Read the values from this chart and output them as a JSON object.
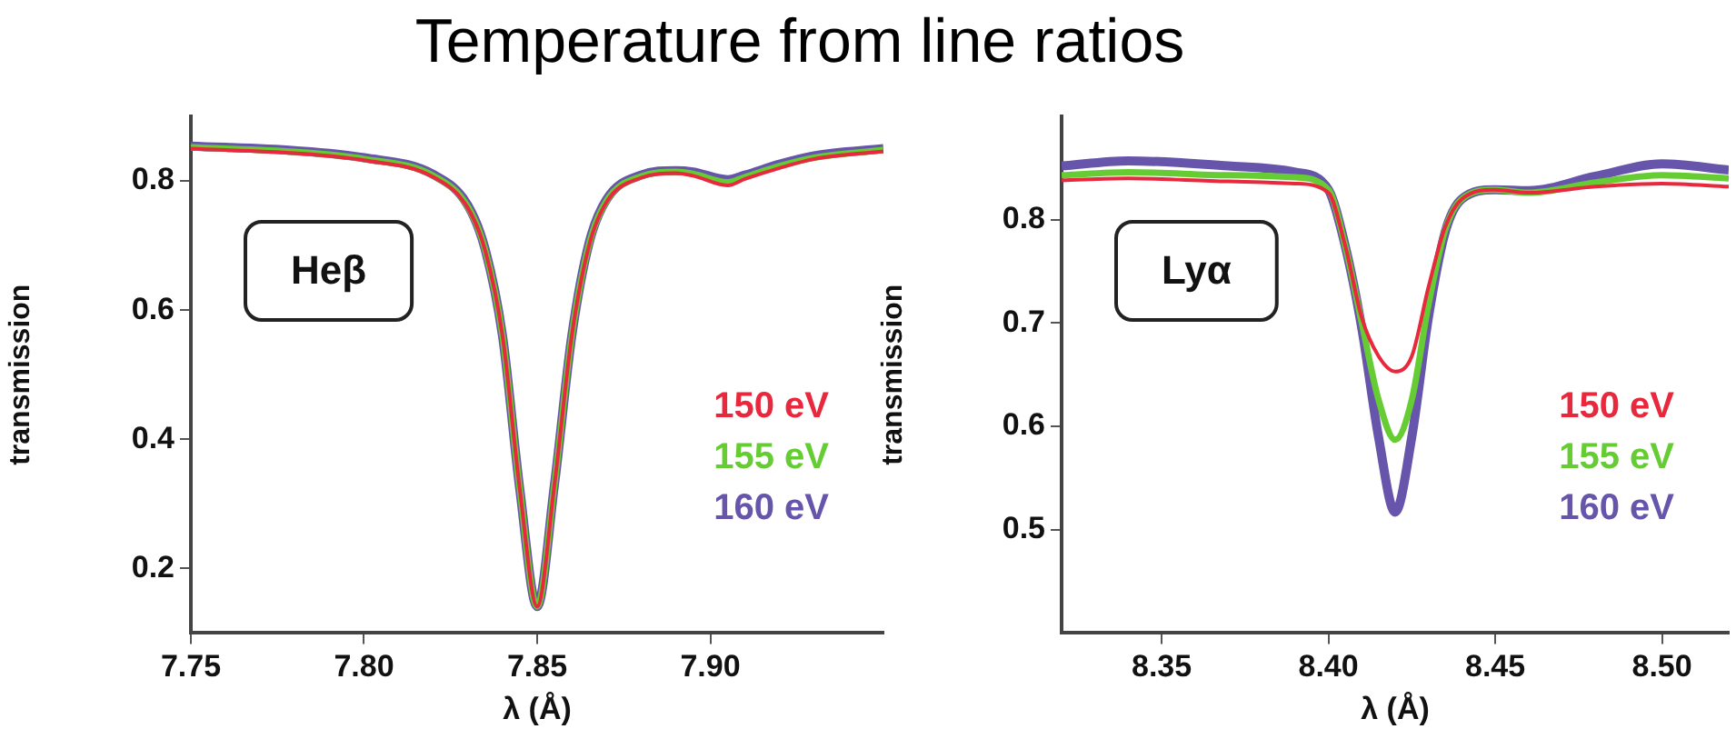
{
  "chart_data": [
    {
      "type": "line",
      "title": "Temperature from line ratios",
      "xlabel": "λ (Å)",
      "ylabel": "transmission",
      "annotations": [
        "Heβ"
      ],
      "x": [
        7.75,
        7.78,
        7.8,
        7.82,
        7.83,
        7.835,
        7.84,
        7.845,
        7.85,
        7.855,
        7.86,
        7.865,
        7.87,
        7.88,
        7.89,
        7.895,
        7.905,
        7.91,
        7.92,
        7.93,
        7.95
      ],
      "series": [
        {
          "name": "150 eV",
          "color": "#e8283c",
          "values": [
            0.85,
            0.843,
            0.832,
            0.806,
            0.758,
            0.692,
            0.56,
            0.322,
            0.141,
            0.33,
            0.56,
            0.7,
            0.767,
            0.805,
            0.812,
            0.808,
            0.793,
            0.803,
            0.82,
            0.834,
            0.846
          ]
        },
        {
          "name": "155 eV",
          "color": "#66cc33",
          "values": [
            0.852,
            0.845,
            0.834,
            0.808,
            0.76,
            0.693,
            0.56,
            0.322,
            0.141,
            0.33,
            0.56,
            0.702,
            0.769,
            0.807,
            0.814,
            0.811,
            0.798,
            0.806,
            0.823,
            0.836,
            0.848
          ]
        },
        {
          "name": "160 eV",
          "color": "#6655aa",
          "values": [
            0.854,
            0.847,
            0.836,
            0.81,
            0.762,
            0.694,
            0.56,
            0.322,
            0.141,
            0.33,
            0.56,
            0.704,
            0.771,
            0.809,
            0.816,
            0.814,
            0.802,
            0.809,
            0.826,
            0.839,
            0.85
          ]
        }
      ],
      "xlim": [
        7.75,
        7.95
      ],
      "xticks": [
        7.75,
        {
          "value": 7.8,
          "label": "7.80"
        },
        7.85,
        {
          "value": 7.9,
          "label": "7.90"
        }
      ],
      "ylim": [
        0.1,
        0.9
      ],
      "yticks": [
        0.2,
        0.4,
        0.6,
        0.8
      ],
      "legend": "right",
      "marker": "none",
      "line_style": "solid",
      "grid": false
    },
    {
      "type": "line",
      "xlabel": "λ (Å)",
      "ylabel": "transmission",
      "annotations": [
        "Lyα"
      ],
      "x": [
        8.32,
        8.34,
        8.37,
        8.39,
        8.4,
        8.405,
        8.41,
        8.415,
        8.42,
        8.425,
        8.43,
        8.435,
        8.44,
        8.45,
        8.46,
        8.48,
        8.5,
        8.52
      ],
      "series": [
        {
          "name": "150 eV",
          "color": "#e8283c",
          "values": [
            0.838,
            0.84,
            0.837,
            0.835,
            0.826,
            0.775,
            0.705,
            0.668,
            0.653,
            0.668,
            0.735,
            0.793,
            0.82,
            0.829,
            0.826,
            0.832,
            0.835,
            0.832
          ]
        },
        {
          "name": "155 eV",
          "color": "#66cc33",
          "values": [
            0.843,
            0.846,
            0.843,
            0.841,
            0.829,
            0.775,
            0.7,
            0.626,
            0.587,
            0.626,
            0.718,
            0.79,
            0.82,
            0.829,
            0.826,
            0.836,
            0.843,
            0.84
          ]
        },
        {
          "name": "160 eV",
          "color": "#6655aa",
          "values": [
            0.852,
            0.857,
            0.852,
            0.846,
            0.829,
            0.775,
            0.695,
            0.59,
            0.517,
            0.59,
            0.706,
            0.788,
            0.82,
            0.829,
            0.828,
            0.842,
            0.854,
            0.848
          ]
        }
      ],
      "xlim": [
        8.32,
        8.52
      ],
      "xticks": [
        8.35,
        {
          "value": 8.4,
          "label": "8.40"
        },
        8.45,
        {
          "value": 8.5,
          "label": "8.50"
        }
      ],
      "ylim": [
        0.4,
        0.9
      ],
      "yticks": [
        0.5,
        0.6,
        0.7,
        0.8
      ],
      "legend": "right",
      "marker": "none",
      "line_style": "solid",
      "grid": false
    }
  ]
}
